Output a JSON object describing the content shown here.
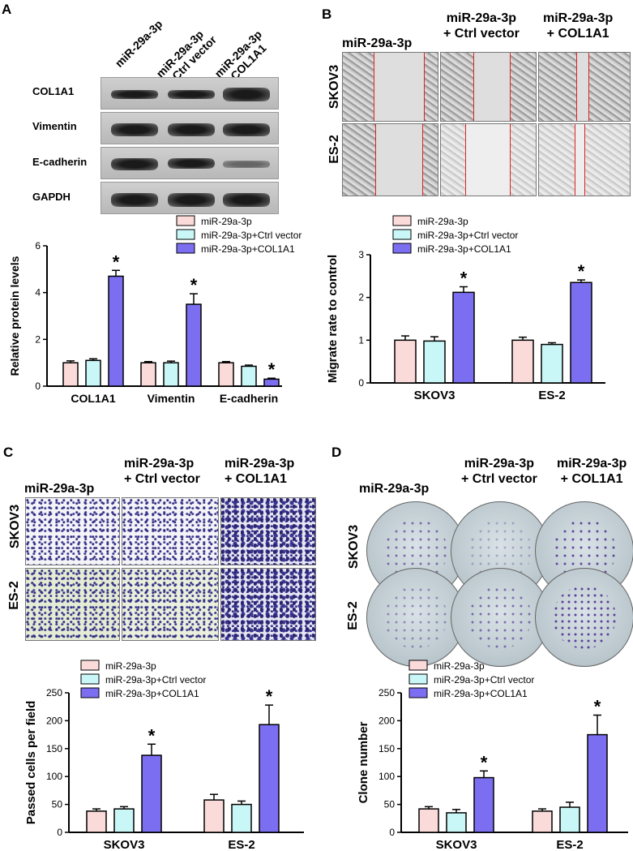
{
  "panels": {
    "a": "A",
    "b": "B",
    "c": "C",
    "d": "D"
  },
  "groups": {
    "g1": "miR-29a-3p",
    "g2_line1": "miR-29a-3p",
    "g2_line2": "+ Ctrl vector",
    "g3_line1": "miR-29a-3p",
    "g3_line2": "+ COL1A1"
  },
  "blot_labels": [
    "COL1A1",
    "Vimentin",
    "E-cadherin",
    "GAPDH"
  ],
  "row_labels": {
    "skov3": "SKOV3",
    "es2": "ES-2"
  },
  "colors": {
    "s1": "#fbdada",
    "s2": "#c9f7f7",
    "s3": "#7c6ef0"
  },
  "chart_data": [
    {
      "id": "chartA",
      "type": "bar",
      "categories": [
        "COL1A1",
        "Vimentin",
        "E-cadherin"
      ],
      "series": [
        {
          "name": "miR-29a-3p",
          "values": [
            1.0,
            1.0,
            1.0
          ],
          "errors": [
            0.08,
            0.05,
            0.05
          ]
        },
        {
          "name": "miR-29a-3p+Ctrl vector",
          "values": [
            1.1,
            1.0,
            0.85
          ],
          "errors": [
            0.07,
            0.07,
            0.05
          ]
        },
        {
          "name": "miR-29a-3p+COL1A1",
          "values": [
            4.7,
            3.5,
            0.3
          ],
          "errors": [
            0.25,
            0.45,
            0.04
          ]
        }
      ],
      "significance": [
        "*",
        "*",
        "*"
      ],
      "ylabel": "Relative protein levels",
      "ylim": [
        0,
        6
      ],
      "yticks": [
        0,
        2,
        4,
        6
      ],
      "legend": "top-right"
    },
    {
      "id": "chartB",
      "type": "bar",
      "categories": [
        "SKOV3",
        "ES-2"
      ],
      "series": [
        {
          "name": "miR-29a-3p",
          "values": [
            1.0,
            1.0
          ],
          "errors": [
            0.1,
            0.07
          ]
        },
        {
          "name": "miR-29a-3p+Ctrl vector",
          "values": [
            0.98,
            0.9
          ],
          "errors": [
            0.1,
            0.04
          ]
        },
        {
          "name": "miR-29a-3p+COL1A1",
          "values": [
            2.12,
            2.35
          ],
          "errors": [
            0.13,
            0.06
          ]
        }
      ],
      "significance": [
        "*",
        "*"
      ],
      "ylabel": "Migrate rate to control",
      "ylim": [
        0,
        3
      ],
      "yticks": [
        0,
        1,
        2,
        3
      ],
      "legend": "top-right"
    },
    {
      "id": "chartC",
      "type": "bar",
      "categories": [
        "SKOV3",
        "ES-2"
      ],
      "series": [
        {
          "name": "miR-29a-3p",
          "values": [
            38,
            58
          ],
          "errors": [
            4,
            10
          ]
        },
        {
          "name": "miR-29a-3p+Ctrl vector",
          "values": [
            42,
            50
          ],
          "errors": [
            4,
            6
          ]
        },
        {
          "name": "miR-29a-3p+COL1A1",
          "values": [
            138,
            193
          ],
          "errors": [
            20,
            35
          ]
        }
      ],
      "significance": [
        "*",
        "*"
      ],
      "ylabel": "Passed cells per field",
      "ylim": [
        0,
        250
      ],
      "yticks": [
        0,
        50,
        100,
        150,
        200,
        250
      ],
      "legend": "top-right"
    },
    {
      "id": "chartD",
      "type": "bar",
      "categories": [
        "SKOV3",
        "ES-2"
      ],
      "series": [
        {
          "name": "miR-29a-3p",
          "values": [
            42,
            38
          ],
          "errors": [
            4,
            4
          ]
        },
        {
          "name": "miR-29a-3p+Ctrl vector",
          "values": [
            35,
            45
          ],
          "errors": [
            6,
            9
          ]
        },
        {
          "name": "miR-29a-3p+COL1A1",
          "values": [
            98,
            175
          ],
          "errors": [
            12,
            35
          ]
        }
      ],
      "significance": [
        "*",
        "*"
      ],
      "ylabel": "Clone number",
      "ylim": [
        0,
        250
      ],
      "yticks": [
        0,
        50,
        100,
        150,
        200,
        250
      ],
      "legend": "top-right"
    }
  ]
}
